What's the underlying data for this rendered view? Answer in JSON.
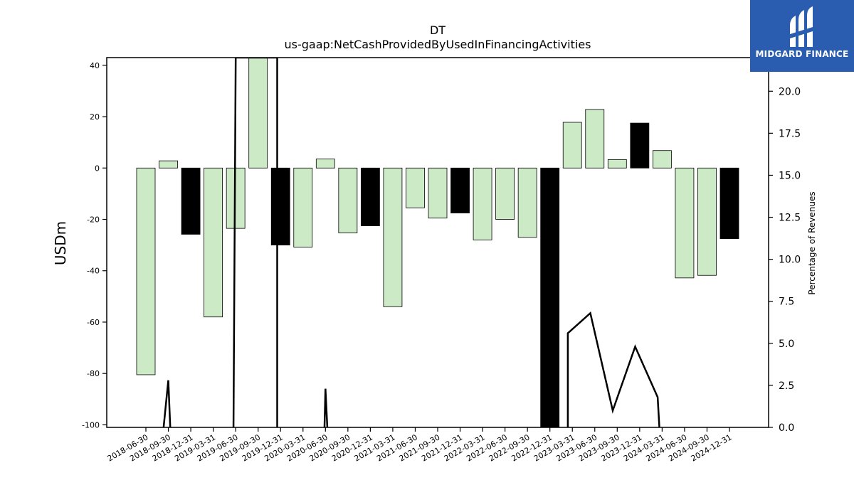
{
  "chart_data": {
    "type": "bar",
    "title": "DT",
    "subtitle": "us-gaap:NetCashProvidedByUsedInFinancingActivities",
    "ylabel": "USDm",
    "y2label": "Percentage of Revenues",
    "ylim": [
      -101,
      43
    ],
    "y2lim": [
      0,
      22
    ],
    "yticks": [
      40,
      20,
      0,
      -20,
      -40,
      -60,
      -80,
      -100
    ],
    "y2ticks": [
      "0.0",
      "2.5",
      "5.0",
      "7.5",
      "10.0",
      "12.5",
      "15.0",
      "17.5",
      "20.0"
    ],
    "categories": [
      "2018-06-30",
      "2018-09-30",
      "2018-12-31",
      "2019-03-31",
      "2019-06-30",
      "2019-09-30",
      "2019-12-31",
      "2020-03-31",
      "2020-06-30",
      "2020-09-30",
      "2020-12-31",
      "2021-03-31",
      "2021-06-30",
      "2021-09-30",
      "2021-12-31",
      "2022-03-31",
      "2022-06-30",
      "2022-09-30",
      "2022-12-31",
      "2023-03-31",
      "2023-06-30",
      "2023-09-30",
      "2023-12-31",
      "2024-03-31",
      "2024-06-30",
      "2024-09-30",
      "2024-12-31"
    ],
    "series": [
      {
        "role": "bars",
        "values": [
          -80.5,
          2.8,
          -25.8,
          -58.0,
          -23.5,
          45.0,
          -30.0,
          -30.8,
          3.5,
          -25.3,
          -22.5,
          -54.0,
          -15.5,
          -19.5,
          -17.5,
          -28.0,
          -20.0,
          -27.0,
          -101,
          17.8,
          22.8,
          3.3,
          17.5,
          6.8,
          -42.8,
          -41.8,
          -27.5
        ],
        "highlight": [
          false,
          false,
          true,
          false,
          false,
          false,
          true,
          false,
          false,
          false,
          true,
          false,
          false,
          false,
          true,
          false,
          false,
          false,
          true,
          false,
          false,
          false,
          true,
          false,
          false,
          false,
          true
        ]
      },
      {
        "role": "line",
        "axis": "right",
        "points": [
          [
            0.75,
            -0.5
          ],
          [
            1,
            2.8
          ],
          [
            1.1,
            -0.5
          ],
          [
            3.9,
            -0.5
          ],
          [
            4,
            22
          ],
          [
            5.85,
            22
          ],
          [
            5.85,
            -0.5
          ],
          [
            7.95,
            -0.5
          ],
          [
            8,
            2.3
          ],
          [
            8.1,
            -0.5
          ],
          [
            18.8,
            -0.5
          ],
          [
            18.8,
            5.6
          ],
          [
            19.8,
            6.8
          ],
          [
            20.8,
            1.0
          ],
          [
            21.8,
            4.8
          ],
          [
            22.8,
            1.8
          ],
          [
            22.9,
            -0.5
          ],
          [
            26.5,
            -0.5
          ]
        ]
      }
    ],
    "colors": {
      "bar": "#cdeac6",
      "highlight": "#000000",
      "line": "#000000",
      "edge": "#000000"
    }
  },
  "logo": {
    "text": "MIDGARD FINANCE",
    "bg": "#2a5db0"
  }
}
